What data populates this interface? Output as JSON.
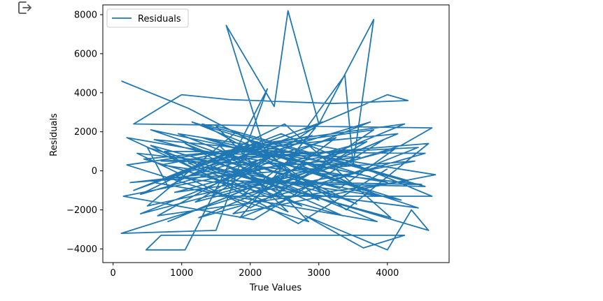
{
  "toolbar": {
    "export_icon": "export-icon"
  },
  "chart_data": {
    "type": "line",
    "title": "",
    "xlabel": "True Values",
    "ylabel": "Residuals",
    "xlim": [
      -150,
      4900
    ],
    "ylim": [
      -4700,
      8500
    ],
    "xticks": [
      0,
      1000,
      2000,
      3000,
      4000
    ],
    "yticks": [
      -4000,
      -2000,
      0,
      2000,
      4000,
      6000,
      8000
    ],
    "grid": false,
    "legend_position": "upper-left",
    "series": [
      {
        "name": "Residuals",
        "color": "#1f77b4",
        "points": [
          [
            120,
            4600
          ],
          [
            1100,
            3200
          ],
          [
            2200,
            1200
          ],
          [
            1650,
            7450
          ],
          [
            2350,
            3300
          ],
          [
            2550,
            8200
          ],
          [
            3000,
            2400
          ],
          [
            3800,
            7750
          ],
          [
            3500,
            300
          ],
          [
            3380,
            4900
          ],
          [
            2800,
            2100
          ],
          [
            4000,
            3900
          ],
          [
            4300,
            3600
          ],
          [
            3200,
            3450
          ],
          [
            1700,
            3650
          ],
          [
            1000,
            3900
          ],
          [
            300,
            2400
          ],
          [
            4650,
            2200
          ],
          [
            4200,
            1300
          ],
          [
            120,
            -3200
          ],
          [
            1500,
            -3050
          ],
          [
            2250,
            4200
          ],
          [
            1050,
            -4050
          ],
          [
            480,
            -4050
          ],
          [
            700,
            -3300
          ],
          [
            4250,
            -3300
          ],
          [
            3650,
            -3950
          ],
          [
            2800,
            -2300
          ],
          [
            4000,
            -4050
          ],
          [
            4350,
            -2000
          ],
          [
            4600,
            -3050
          ],
          [
            500,
            1200
          ],
          [
            800,
            -800
          ],
          [
            2100,
            1500
          ],
          [
            3000,
            -1500
          ],
          [
            1400,
            900
          ],
          [
            3600,
            700
          ],
          [
            250,
            -600
          ],
          [
            4400,
            500
          ],
          [
            1900,
            -1200
          ],
          [
            2700,
            900
          ],
          [
            600,
            1600
          ],
          [
            3300,
            -900
          ],
          [
            4100,
            1100
          ],
          [
            1200,
            -1600
          ],
          [
            2400,
            1000
          ],
          [
            3900,
            -1300
          ],
          [
            700,
            300
          ],
          [
            2900,
            1800
          ],
          [
            1600,
            -500
          ],
          [
            4500,
            -700
          ],
          [
            350,
            900
          ],
          [
            2000,
            -1900
          ],
          [
            3700,
            1500
          ],
          [
            900,
            -1100
          ],
          [
            2600,
            -300
          ],
          [
            4200,
            -1500
          ],
          [
            1300,
            1700
          ],
          [
            3100,
            200
          ],
          [
            500,
            -1800
          ],
          [
            1800,
            2000
          ],
          [
            3400,
            -2000
          ],
          [
            4600,
            1400
          ],
          [
            1100,
            400
          ],
          [
            2300,
            -1400
          ],
          [
            3800,
            2100
          ],
          [
            200,
            300
          ],
          [
            2850,
            -2600
          ],
          [
            1500,
            2300
          ],
          [
            4300,
            -500
          ],
          [
            650,
            -2300
          ],
          [
            2150,
            600
          ],
          [
            3550,
            -1700
          ],
          [
            950,
            1900
          ],
          [
            4700,
            -200
          ],
          [
            1750,
            -2200
          ],
          [
            3250,
            1700
          ],
          [
            400,
            -1200
          ],
          [
            2500,
            2400
          ],
          [
            4050,
            -2400
          ],
          [
            1350,
            200
          ],
          [
            2950,
            -800
          ],
          [
            550,
            2100
          ],
          [
            3750,
            -300
          ],
          [
            1850,
            1100
          ],
          [
            4450,
            -1900
          ],
          [
            850,
            -300
          ],
          [
            2650,
            1500
          ],
          [
            3450,
            1000
          ],
          [
            150,
            -1300
          ],
          [
            2050,
            -2500
          ],
          [
            3950,
            1600
          ],
          [
            1250,
            -2400
          ],
          [
            4550,
            900
          ],
          [
            750,
            1000
          ],
          [
            2750,
            -1800
          ],
          [
            1650,
            300
          ],
          [
            3350,
            -2300
          ],
          [
            450,
            600
          ],
          [
            4150,
            1900
          ],
          [
            2250,
            -900
          ],
          [
            1050,
            1400
          ],
          [
            3850,
            -2600
          ],
          [
            600,
            -600
          ],
          [
            2450,
            1900
          ],
          [
            4650,
            -1300
          ],
          [
            1450,
            -1300
          ],
          [
            3050,
            2500
          ],
          [
            300,
            -1000
          ],
          [
            1950,
            1300
          ],
          [
            4250,
            2400
          ],
          [
            800,
            -2600
          ],
          [
            2850,
            400
          ],
          [
            3650,
            -1000
          ],
          [
            1150,
            2500
          ],
          [
            4000,
            -600
          ],
          [
            200,
            1700
          ],
          [
            2550,
            -2100
          ],
          [
            1550,
            1300
          ],
          [
            3400,
            300
          ],
          [
            700,
            500
          ],
          [
            4450,
            1200
          ],
          [
            1850,
            -2400
          ],
          [
            2950,
            2200
          ],
          [
            1000,
            -400
          ],
          [
            3750,
            2500
          ],
          [
            400,
            -2200
          ],
          [
            2150,
            -600
          ],
          [
            4550,
            -800
          ],
          [
            1300,
            2400
          ],
          [
            3150,
            -1200
          ],
          [
            550,
            1300
          ],
          [
            2700,
            -2700
          ],
          [
            4000,
            100
          ]
        ]
      }
    ]
  }
}
